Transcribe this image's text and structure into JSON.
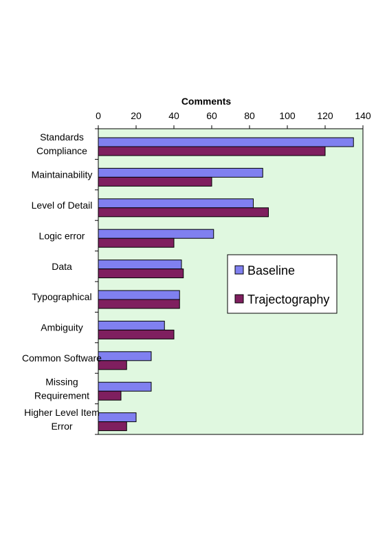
{
  "chart_data": {
    "type": "bar",
    "orientation": "horizontal",
    "title": "",
    "xlabel": "Comments",
    "ylabel": "",
    "xlim": [
      0,
      140
    ],
    "x_ticks": [
      0,
      20,
      40,
      60,
      80,
      100,
      120,
      140
    ],
    "x_axis_position": "top",
    "grid": false,
    "legend_position": "right",
    "categories": [
      "Standards Compliance",
      "Maintainability",
      "Level of Detail",
      "Logic error",
      "Data",
      "Typographical",
      "Ambiguity",
      "Common Software",
      "Missing Requirement",
      "Higher Level Item Error"
    ],
    "series": [
      {
        "name": "Baseline",
        "color": "#8080f0",
        "values": [
          135,
          87,
          82,
          61,
          44,
          43,
          35,
          28,
          28,
          20
        ]
      },
      {
        "name": "Trajectography",
        "color": "#7f1f5f",
        "values": [
          120,
          60,
          90,
          40,
          45,
          43,
          40,
          15,
          12,
          15
        ]
      }
    ],
    "plot_background": "#e0f8e0"
  }
}
